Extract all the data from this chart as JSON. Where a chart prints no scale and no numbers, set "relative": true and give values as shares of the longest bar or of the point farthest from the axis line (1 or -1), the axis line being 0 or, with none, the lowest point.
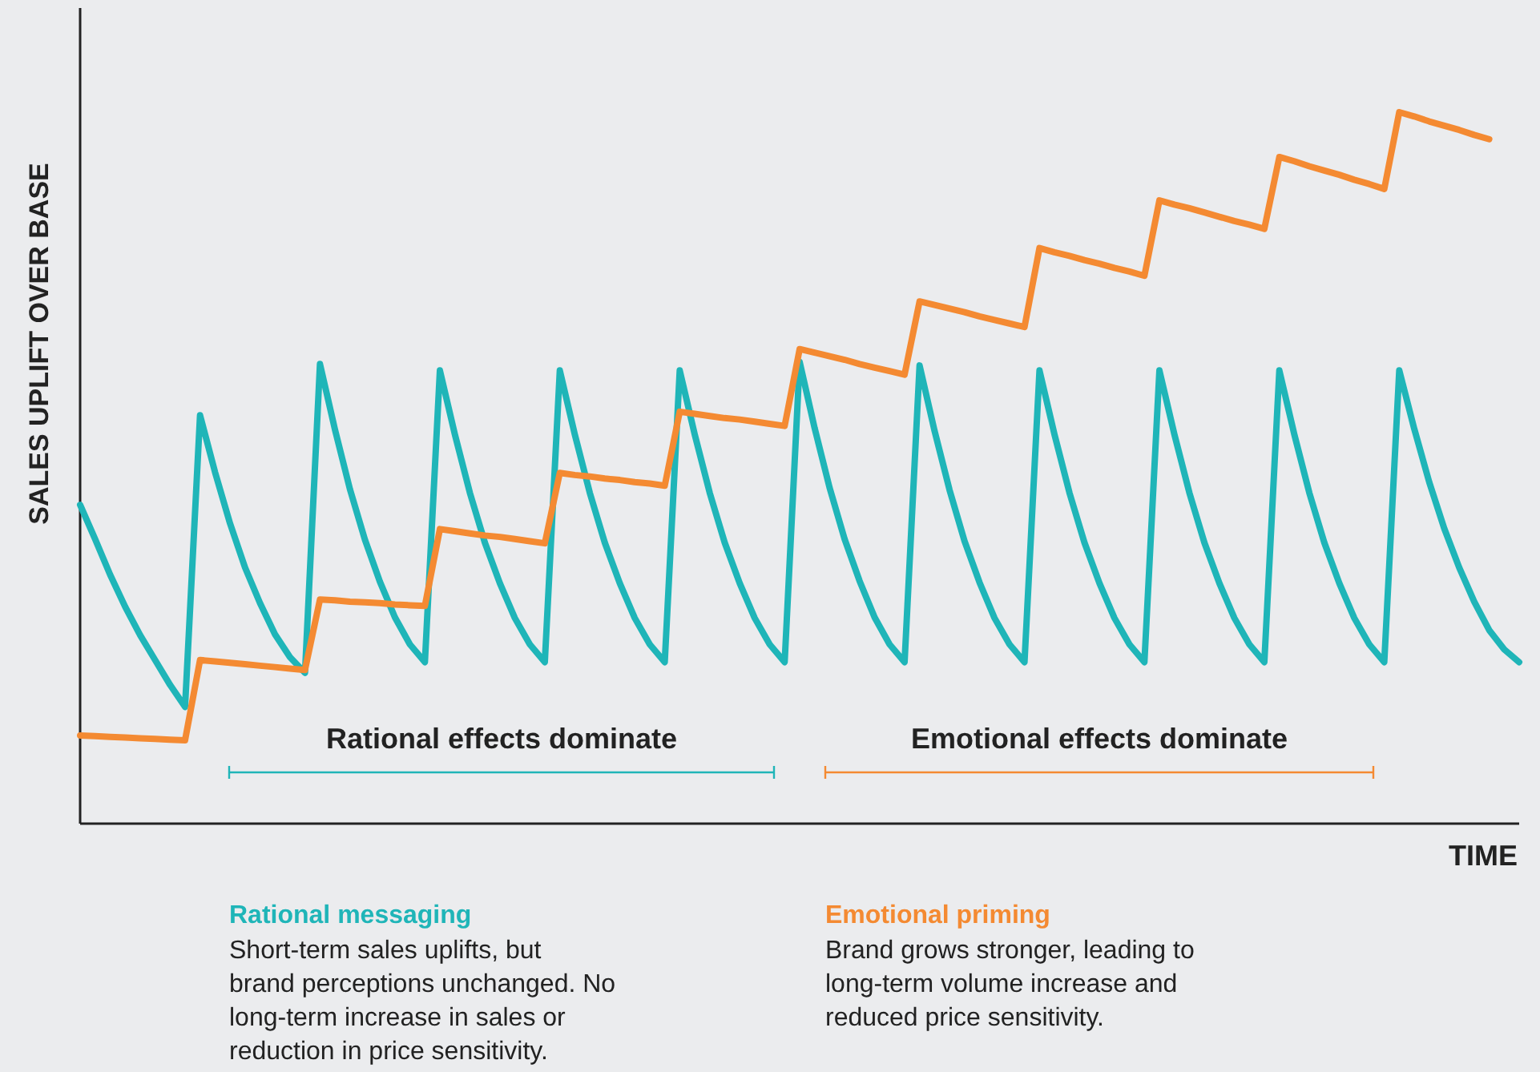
{
  "chart_data": {
    "type": "line",
    "relative": true,
    "xlabel": "TIME",
    "ylabel": "SALES UPLIFT OVER BASE",
    "grid": false,
    "marker": "none",
    "line_style": "solid",
    "categories": [
      null,
      null,
      null,
      null,
      null,
      null,
      null,
      null,
      null,
      null,
      null,
      null,
      null,
      null,
      null,
      null,
      null,
      null,
      null,
      null,
      null,
      null,
      null,
      null,
      null,
      null,
      null,
      null,
      null,
      null,
      null,
      null,
      null,
      null,
      null,
      null,
      null,
      null,
      null,
      null,
      null,
      null,
      null,
      null,
      null,
      null,
      null,
      null,
      null,
      null,
      null,
      null,
      null,
      null,
      null,
      null,
      null,
      null,
      null,
      null,
      null,
      null,
      null,
      null,
      null,
      null,
      null,
      null,
      null,
      null,
      null,
      null,
      null,
      null,
      null,
      null,
      null,
      null,
      null,
      null,
      null,
      null,
      null,
      null,
      null,
      null,
      null,
      null,
      null,
      null,
      null,
      null,
      null,
      null,
      null,
      null,
      null
    ],
    "series": [
      {
        "name": "Rational messaging",
        "color": "#1fb5b8",
        "values": [
          0.448,
          0.4,
          0.35,
          0.305,
          0.265,
          0.23,
          0.195,
          0.164,
          0.574,
          0.494,
          0.422,
          0.36,
          0.31,
          0.266,
          0.234,
          0.212,
          0.646,
          0.554,
          0.47,
          0.399,
          0.34,
          0.29,
          0.252,
          0.227,
          0.637,
          0.547,
          0.465,
          0.395,
          0.338,
          0.289,
          0.252,
          0.227,
          0.637,
          0.547,
          0.465,
          0.395,
          0.338,
          0.289,
          0.252,
          0.227,
          0.637,
          0.547,
          0.465,
          0.395,
          0.338,
          0.289,
          0.252,
          0.227,
          0.649,
          0.556,
          0.472,
          0.4,
          0.341,
          0.29,
          0.252,
          0.227,
          0.644,
          0.552,
          0.469,
          0.397,
          0.339,
          0.289,
          0.252,
          0.227,
          0.637,
          0.547,
          0.465,
          0.395,
          0.338,
          0.289,
          0.252,
          0.227,
          0.637,
          0.547,
          0.465,
          0.395,
          0.338,
          0.289,
          0.252,
          0.227,
          0.637,
          0.547,
          0.465,
          0.395,
          0.338,
          0.289,
          0.252,
          0.227,
          0.637,
          0.555,
          0.48,
          0.415,
          0.36,
          0.312,
          0.272,
          0.245,
          0.227
        ]
      },
      {
        "name": "Emotional priming",
        "color": "#f48a32",
        "values": [
          0.124,
          0.123,
          0.122,
          0.121,
          0.12,
          0.119,
          0.118,
          0.117,
          0.23,
          0.228,
          0.226,
          0.224,
          0.222,
          0.22,
          0.218,
          0.216,
          0.315,
          0.314,
          0.312,
          0.311,
          0.31,
          0.308,
          0.307,
          0.306,
          0.414,
          0.411,
          0.408,
          0.405,
          0.403,
          0.4,
          0.397,
          0.394,
          0.493,
          0.49,
          0.488,
          0.485,
          0.483,
          0.48,
          0.478,
          0.475,
          0.579,
          0.576,
          0.573,
          0.57,
          0.568,
          0.565,
          0.562,
          0.559,
          0.667,
          0.662,
          0.657,
          0.652,
          0.646,
          0.641,
          0.636,
          0.631,
          0.734,
          0.729,
          0.724,
          0.719,
          0.713,
          0.708,
          0.703,
          0.698,
          0.809,
          0.803,
          0.798,
          0.792,
          0.787,
          0.781,
          0.776,
          0.77,
          0.876,
          0.87,
          0.865,
          0.859,
          0.853,
          0.847,
          0.842,
          0.836,
          0.937,
          0.931,
          0.924,
          0.918,
          0.912,
          0.905,
          0.899,
          0.892,
          1,
          0.994,
          0.987,
          0.981,
          0.975,
          0.968,
          0.962,
          null,
          null
        ]
      }
    ],
    "annotations": [
      "Rational effects dominate",
      "Emotional effects dominate",
      "Short-term sales uplifts, but brand perceptions unchanged. No long-term increase in sales or reduction in price sensitivity.",
      "Brand grows stronger, leading to long-term volume increase and reduced price sensitivity."
    ]
  }
}
